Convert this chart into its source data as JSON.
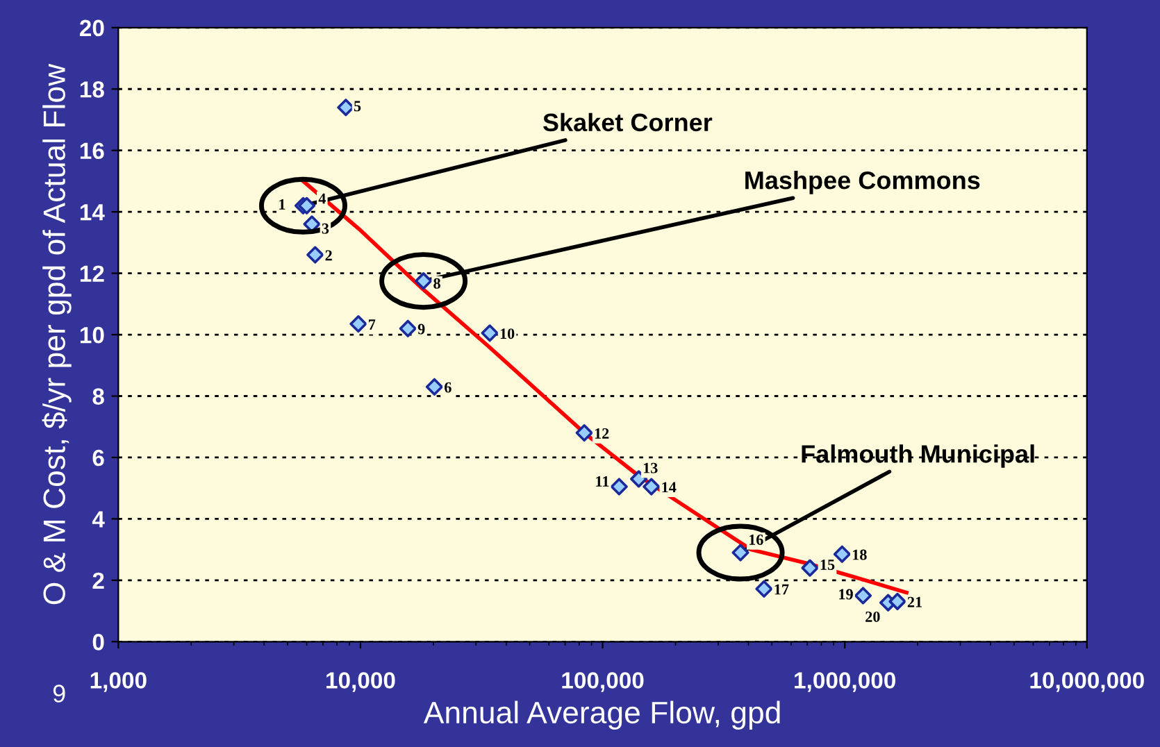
{
  "chart_data": {
    "type": "scatter",
    "xlabel": "Annual Average Flow, gpd",
    "ylabel": "O & M Cost, $/yr per gpd of Actual Flow",
    "log": "x",
    "xlim": [
      1000,
      10000000
    ],
    "xticks": [
      {
        "value": 1000,
        "label": "1,000"
      },
      {
        "value": 10000,
        "label": "10,000"
      },
      {
        "value": 100000,
        "label": "100,000"
      },
      {
        "value": 1000000,
        "label": "1,000,000"
      },
      {
        "value": 10000000,
        "label": "10,000,000"
      }
    ],
    "ylim": [
      0,
      20
    ],
    "yticks": [
      0,
      2,
      4,
      6,
      8,
      10,
      12,
      14,
      16,
      18,
      20
    ],
    "grid": "y",
    "series": [
      {
        "type": "scatter",
        "color": "#99ccff",
        "marker": "diamond",
        "x": [
          5800,
          6500,
          6300,
          6000,
          8700,
          20200,
          9800,
          18200,
          15700,
          34200,
          117000,
          84000,
          141000,
          159000,
          718000,
          371000,
          464000,
          975000,
          1190000,
          1510000,
          1650000
        ],
        "values": [
          14.2,
          12.6,
          13.6,
          14.2,
          17.4,
          8.3,
          10.35,
          11.75,
          10.2,
          10.05,
          5.05,
          6.8,
          5.3,
          5.05,
          2.4,
          2.9,
          1.72,
          2.85,
          1.5,
          1.27,
          1.31
        ]
      },
      {
        "type": "line",
        "color": "#ff0000",
        "x": [
          5800,
          10000,
          18000,
          34000,
          84000,
          141000,
          240000,
          410000,
          700000,
          1100000,
          1800000
        ],
        "values": [
          15.0,
          13.4,
          11.5,
          9.6,
          6.8,
          5.4,
          4.2,
          3.0,
          2.55,
          2.1,
          1.6
        ]
      }
    ],
    "annotations": [
      {
        "text": "Skaket Corner",
        "x": 5800,
        "y": 14.2
      },
      {
        "text": "Mashpee Commons",
        "x": 18200,
        "y": 11.75
      },
      {
        "text": "Falmouth Municipal",
        "x": 371000,
        "y": 2.9
      },
      "9",
      {
        "text": "1",
        "x": 5800,
        "y": 14.2
      },
      {
        "text": "2",
        "x": 6500,
        "y": 12.6
      },
      {
        "text": "3",
        "x": 6300,
        "y": 13.6
      },
      {
        "text": "4",
        "x": 6000,
        "y": 14.2
      },
      {
        "text": "5",
        "x": 8700,
        "y": 17.4
      },
      {
        "text": "6",
        "x": 20200,
        "y": 8.3
      },
      {
        "text": "7",
        "x": 9800,
        "y": 10.35
      },
      {
        "text": "8",
        "x": 18200,
        "y": 11.75
      },
      {
        "text": "9",
        "x": 15700,
        "y": 10.2
      },
      {
        "text": "10",
        "x": 34200,
        "y": 10.05
      },
      {
        "text": "11",
        "x": 117000,
        "y": 5.05
      },
      {
        "text": "12",
        "x": 84000,
        "y": 6.8
      },
      {
        "text": "13",
        "x": 141000,
        "y": 5.3
      },
      {
        "text": "14",
        "x": 159000,
        "y": 5.05
      },
      {
        "text": "15",
        "x": 718000,
        "y": 2.4
      },
      {
        "text": "16",
        "x": 371000,
        "y": 2.9
      },
      {
        "text": "17",
        "x": 464000,
        "y": 1.72
      },
      {
        "text": "18",
        "x": 975000,
        "y": 2.85
      },
      {
        "text": "19",
        "x": 1190000,
        "y": 1.5
      },
      {
        "text": "20",
        "x": 1510000,
        "y": 1.27
      },
      {
        "text": "21",
        "x": 1650000,
        "y": 1.31
      }
    ]
  }
}
